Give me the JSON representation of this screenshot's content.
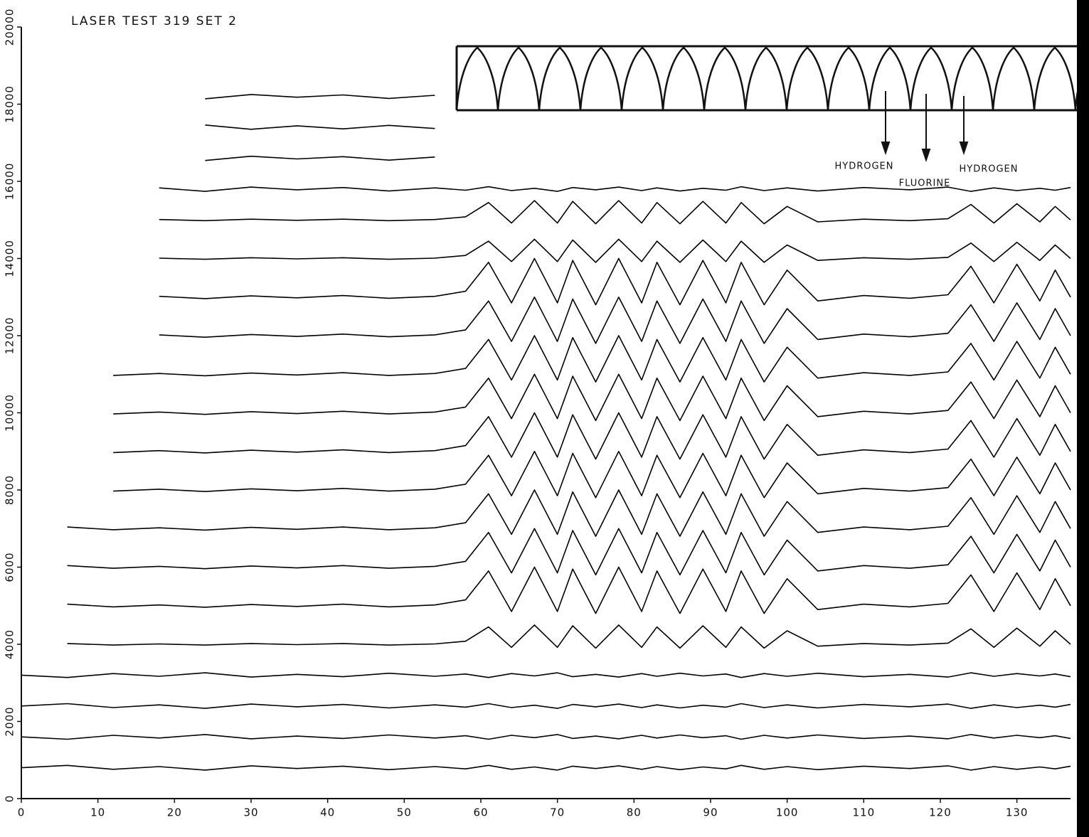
{
  "chart_data": {
    "type": "waterfall",
    "title": "LASER TEST 319 SET 2",
    "annotations": [
      "HYDROGEN",
      "FLUORINE",
      "HYDROGEN"
    ],
    "xlim": [
      0,
      137
    ],
    "ylim": [
      0,
      20000
    ],
    "xticks": [
      0,
      10,
      20,
      30,
      40,
      50,
      60,
      70,
      80,
      90,
      100,
      110,
      120,
      130
    ],
    "yticks": [
      0,
      2000,
      4000,
      6000,
      8000,
      10000,
      12000,
      14000,
      16000,
      18000,
      20000
    ],
    "color": "#000000",
    "x": [
      0,
      6,
      12,
      18,
      24,
      30,
      36,
      42,
      48,
      54,
      58,
      61,
      64,
      67,
      70,
      72,
      75,
      78,
      81,
      83,
      86,
      89,
      92,
      94,
      97,
      100,
      104,
      110,
      116,
      121,
      124,
      127,
      130,
      133,
      135,
      137
    ],
    "series": [
      {
        "values": [
          800,
          860,
          760,
          830,
          740,
          850,
          780,
          840,
          750,
          830,
          770,
          860,
          760,
          820,
          740,
          840,
          780,
          850,
          760,
          830,
          750,
          820,
          770,
          860,
          760,
          830,
          750,
          840,
          780,
          850,
          740,
          830,
          760,
          820,
          770,
          840
        ]
      },
      {
        "values": [
          1600,
          1540,
          1640,
          1570,
          1660,
          1550,
          1620,
          1560,
          1650,
          1570,
          1630,
          1540,
          1640,
          1580,
          1660,
          1560,
          1620,
          1550,
          1640,
          1570,
          1650,
          1580,
          1630,
          1540,
          1640,
          1570,
          1650,
          1560,
          1620,
          1550,
          1660,
          1570,
          1640,
          1580,
          1630,
          1560
        ]
      },
      {
        "values": [
          2400,
          2460,
          2360,
          2430,
          2340,
          2450,
          2380,
          2440,
          2350,
          2430,
          2370,
          2460,
          2360,
          2420,
          2340,
          2440,
          2380,
          2450,
          2360,
          2430,
          2350,
          2420,
          2370,
          2460,
          2360,
          2430,
          2350,
          2440,
          2380,
          2450,
          2340,
          2430,
          2360,
          2420,
          2370,
          2440
        ]
      },
      {
        "values": [
          3200,
          3140,
          3240,
          3170,
          3260,
          3150,
          3220,
          3160,
          3250,
          3170,
          3230,
          3140,
          3240,
          3180,
          3260,
          3160,
          3220,
          3150,
          3240,
          3170,
          3250,
          3180,
          3230,
          3140,
          3240,
          3170,
          3250,
          3160,
          3220,
          3150,
          3260,
          3170,
          3240,
          3180,
          3230,
          3160
        ]
      },
      {
        "values": [
          null,
          4020,
          3980,
          4010,
          3980,
          4020,
          3990,
          4020,
          3980,
          4010,
          4080,
          4450,
          3920,
          4500,
          3920,
          4480,
          3900,
          4500,
          3920,
          4450,
          3900,
          4480,
          3920,
          4450,
          3900,
          4350,
          3950,
          4020,
          3980,
          4030,
          4400,
          3920,
          4420,
          3950,
          4350,
          4000
        ]
      },
      {
        "values": [
          null,
          5040,
          4970,
          5020,
          4960,
          5030,
          4980,
          5040,
          4970,
          5020,
          5150,
          5900,
          4850,
          6000,
          4850,
          5950,
          4800,
          6000,
          4850,
          5900,
          4800,
          5950,
          4850,
          5900,
          4800,
          5700,
          4900,
          5040,
          4970,
          5060,
          5800,
          4850,
          5850,
          4900,
          5700,
          5000
        ]
      },
      {
        "values": [
          null,
          6040,
          5970,
          6020,
          5960,
          6030,
          5980,
          6040,
          5970,
          6020,
          6150,
          6900,
          5850,
          7000,
          5850,
          6950,
          5800,
          7000,
          5850,
          6900,
          5800,
          6950,
          5850,
          6900,
          5800,
          6700,
          5900,
          6040,
          5970,
          6060,
          6800,
          5850,
          6850,
          5900,
          6700,
          6000
        ]
      },
      {
        "values": [
          null,
          7040,
          6970,
          7020,
          6960,
          7030,
          6980,
          7040,
          6970,
          7020,
          7150,
          7900,
          6850,
          8000,
          6850,
          7950,
          6800,
          8000,
          6850,
          7900,
          6800,
          7950,
          6850,
          7900,
          6800,
          7700,
          6900,
          7040,
          6970,
          7060,
          7800,
          6850,
          7850,
          6900,
          7700,
          7000
        ]
      },
      {
        "values": [
          null,
          null,
          7970,
          8020,
          7960,
          8030,
          7980,
          8040,
          7970,
          8020,
          8150,
          8900,
          7850,
          9000,
          7850,
          8950,
          7800,
          9000,
          7850,
          8900,
          7800,
          8950,
          7850,
          8900,
          7800,
          8700,
          7900,
          8040,
          7970,
          8060,
          8800,
          7850,
          8850,
          7900,
          8700,
          8000
        ]
      },
      {
        "values": [
          null,
          null,
          8970,
          9020,
          8960,
          9030,
          8980,
          9040,
          8970,
          9020,
          9150,
          9900,
          8850,
          10000,
          8850,
          9950,
          8800,
          10000,
          8850,
          9900,
          8800,
          9950,
          8850,
          9900,
          8800,
          9700,
          8900,
          9040,
          8970,
          9060,
          9800,
          8850,
          9850,
          8900,
          9700,
          9000
        ]
      },
      {
        "values": [
          null,
          null,
          9970,
          10020,
          9960,
          10030,
          9980,
          10040,
          9970,
          10020,
          10150,
          10900,
          9850,
          11000,
          9850,
          10950,
          9800,
          11000,
          9850,
          10900,
          9800,
          10950,
          9850,
          10900,
          9800,
          10700,
          9900,
          10040,
          9970,
          10060,
          10800,
          9850,
          10850,
          9900,
          10700,
          10000
        ]
      },
      {
        "values": [
          null,
          null,
          10970,
          11020,
          10960,
          11030,
          10980,
          11040,
          10970,
          11020,
          11150,
          11900,
          10850,
          12000,
          10850,
          11950,
          10800,
          12000,
          10850,
          11900,
          10800,
          11950,
          10850,
          11900,
          10800,
          11700,
          10900,
          11040,
          10970,
          11060,
          11800,
          10850,
          11850,
          10900,
          11700,
          11000
        ]
      },
      {
        "values": [
          null,
          null,
          null,
          12020,
          11960,
          12030,
          11980,
          12040,
          11970,
          12020,
          12150,
          12900,
          11850,
          13000,
          11850,
          12950,
          11800,
          13000,
          11850,
          12900,
          11800,
          12950,
          11850,
          12900,
          11800,
          12700,
          11900,
          12040,
          11970,
          12060,
          12800,
          11850,
          12850,
          11900,
          12700,
          12000
        ]
      },
      {
        "values": [
          null,
          null,
          null,
          13020,
          12960,
          13030,
          12980,
          13040,
          12970,
          13020,
          13150,
          13900,
          12850,
          14000,
          12850,
          13950,
          12800,
          14000,
          12850,
          13900,
          12800,
          13950,
          12850,
          13900,
          12800,
          13700,
          12900,
          13040,
          12970,
          13060,
          13800,
          12850,
          13850,
          12900,
          13700,
          13000
        ]
      },
      {
        "values": [
          null,
          null,
          null,
          14010,
          13980,
          14020,
          13990,
          14020,
          13980,
          14010,
          14080,
          14450,
          13920,
          14500,
          13920,
          14480,
          13900,
          14500,
          13920,
          14450,
          13900,
          14480,
          13920,
          14450,
          13900,
          14350,
          13950,
          14020,
          13980,
          14030,
          14400,
          13920,
          14420,
          13950,
          14350,
          14000
        ]
      },
      {
        "values": [
          null,
          null,
          null,
          15010,
          14980,
          15020,
          14990,
          15020,
          14980,
          15010,
          15080,
          15450,
          14920,
          15500,
          14920,
          15480,
          14900,
          15500,
          14920,
          15450,
          14900,
          15480,
          14920,
          15450,
          14900,
          15350,
          14950,
          15020,
          14980,
          15030,
          15400,
          14920,
          15420,
          14950,
          15350,
          15000
        ]
      },
      {
        "values": [
          null,
          null,
          null,
          15830,
          15740,
          15850,
          15780,
          15840,
          15750,
          15830,
          15770,
          15860,
          15760,
          15820,
          15740,
          15840,
          15780,
          15850,
          15760,
          15830,
          15750,
          15820,
          15770,
          15860,
          15760,
          15830,
          15750,
          15840,
          15780,
          15850,
          15740,
          15830,
          15760,
          15820,
          15770,
          15840
        ]
      },
      {
        "values": [
          null,
          null,
          null,
          null,
          16540,
          16650,
          16580,
          16640,
          16550,
          16630,
          null,
          null,
          null,
          null,
          null,
          null,
          null,
          null,
          null,
          null,
          null,
          null,
          null,
          null,
          null,
          null,
          null,
          null,
          null,
          null,
          null,
          null,
          null,
          null,
          null,
          null
        ]
      },
      {
        "values": [
          null,
          null,
          null,
          null,
          17460,
          17350,
          17440,
          17360,
          17450,
          17370,
          null,
          null,
          null,
          null,
          null,
          null,
          null,
          null,
          null,
          null,
          null,
          null,
          null,
          null,
          null,
          null,
          null,
          null,
          null,
          null,
          null,
          null,
          null,
          null,
          null,
          null
        ]
      },
      {
        "values": [
          null,
          null,
          null,
          null,
          18140,
          18250,
          18180,
          18240,
          18150,
          18230,
          null,
          null,
          null,
          null,
          null,
          null,
          null,
          null,
          null,
          null,
          null,
          null,
          null,
          null,
          null,
          null,
          null,
          null,
          null,
          null,
          null,
          null,
          null,
          null,
          null,
          null
        ]
      }
    ]
  }
}
